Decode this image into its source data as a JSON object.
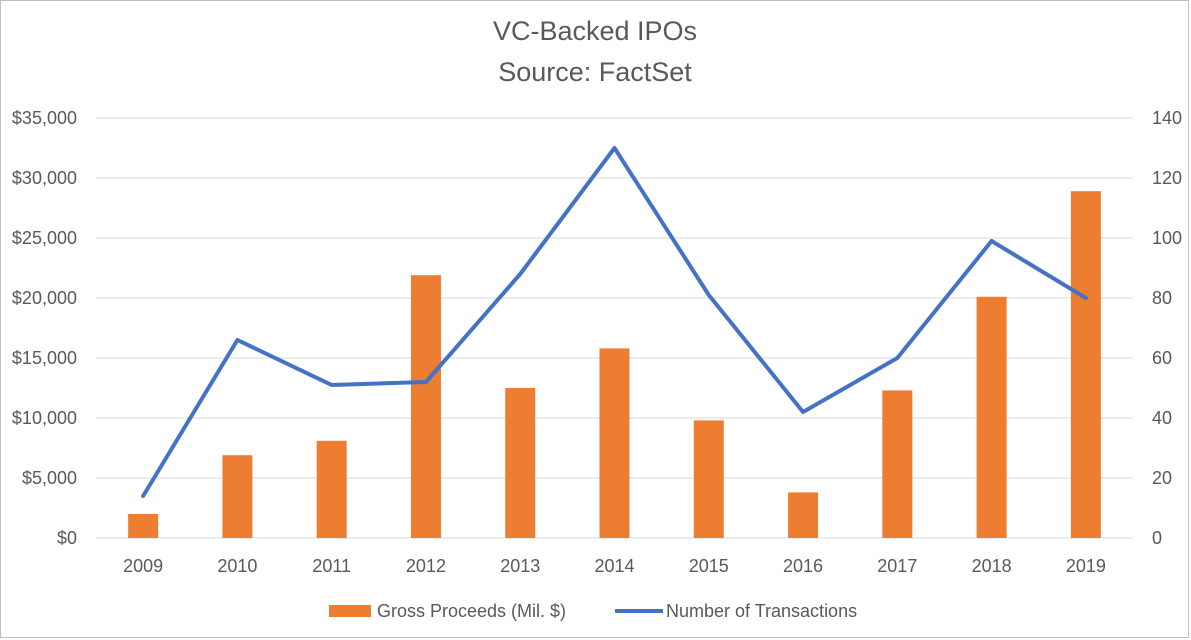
{
  "chart_data": {
    "type": "bar",
    "title": "VC-Backed IPOs",
    "subtitle": "Source: FactSet",
    "categories": [
      "2009",
      "2010",
      "2011",
      "2012",
      "2013",
      "2014",
      "2015",
      "2016",
      "2017",
      "2018",
      "2019"
    ],
    "series": [
      {
        "name": "Gross Proceeds (Mil. $)",
        "type": "bar",
        "axis": "left",
        "color": "#ed7d31",
        "values": [
          2000,
          6900,
          8100,
          21900,
          12500,
          15800,
          9800,
          3800,
          12300,
          20100,
          28900
        ]
      },
      {
        "name": "Number of Transactions",
        "type": "line",
        "axis": "right",
        "color": "#4472c4",
        "values": [
          14,
          66,
          51,
          52,
          88,
          130,
          81,
          42,
          60,
          99,
          80
        ]
      }
    ],
    "y_left": {
      "ylim": [
        0,
        35000
      ],
      "ticks": [
        0,
        5000,
        10000,
        15000,
        20000,
        25000,
        30000,
        35000
      ],
      "tick_labels": [
        "$0",
        "$5,000",
        "$10,000",
        "$15,000",
        "$20,000",
        "$25,000",
        "$30,000",
        "$35,000"
      ]
    },
    "y_right": {
      "ylim": [
        0,
        140
      ],
      "ticks": [
        0,
        20,
        40,
        60,
        80,
        100,
        120,
        140
      ],
      "tick_labels": [
        "0",
        "20",
        "40",
        "60",
        "80",
        "100",
        "120",
        "140"
      ]
    },
    "grid": true,
    "legend": "bottom",
    "colors": {
      "grid": "#d9d9d9",
      "text": "#595959"
    }
  }
}
